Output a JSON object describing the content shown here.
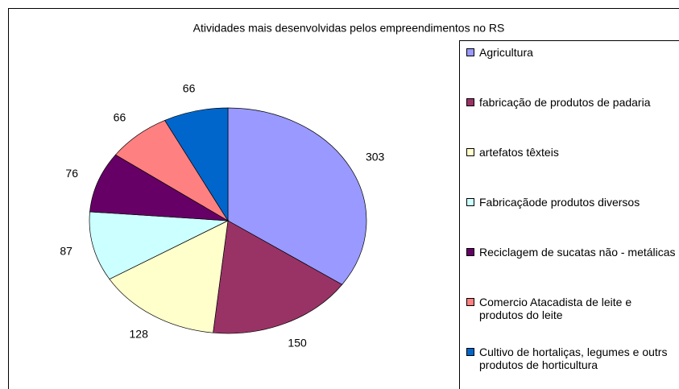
{
  "chart_data": {
    "type": "pie",
    "title": "Atividades mais desenvolvidas pelos empreendimentos no RS",
    "categories": [
      "Agricultura",
      "fabricação de produtos de padaria",
      "artefatos têxteis",
      "Fabricaçãode produtos diversos",
      "Reciclagem de sucatas não - metálicas",
      "Comercio Atacadista de leite e produtos do leite",
      "Cultivo de hortaliças, legumes e outrs produtos de horticultura"
    ],
    "values": [
      303,
      150,
      128,
      87,
      76,
      66,
      66
    ],
    "colors": [
      "#9999ff",
      "#993366",
      "#ffffcc",
      "#ccffff",
      "#660066",
      "#ff8080",
      "#0066cc"
    ],
    "legend": "right"
  }
}
